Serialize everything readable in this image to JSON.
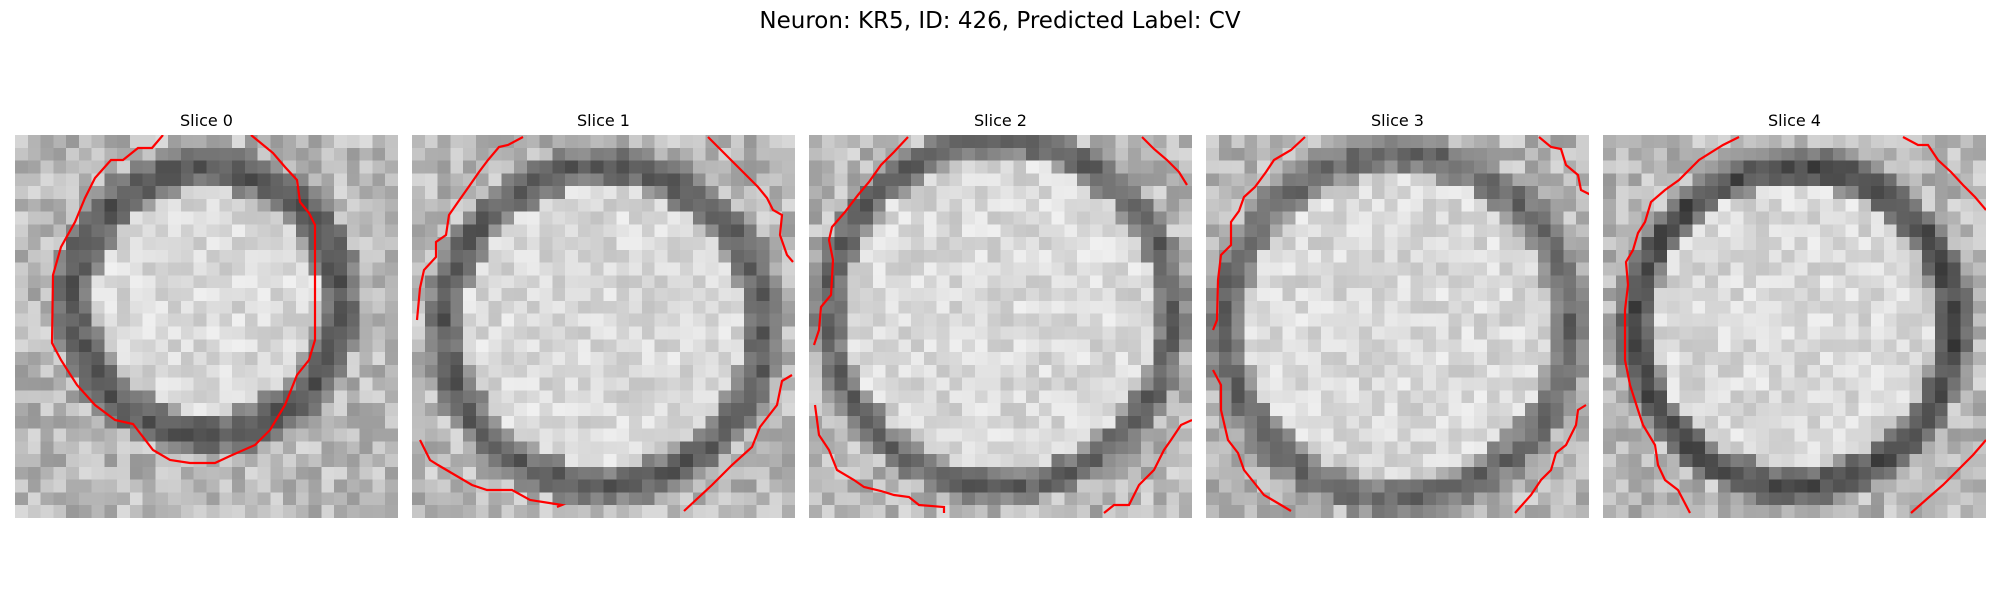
{
  "figure": {
    "title": "Neuron: KR5, ID: 426, Predicted Label: CV"
  },
  "panels": [
    {
      "title": "Slice 0"
    },
    {
      "title": "Slice 1"
    },
    {
      "title": "Slice 2"
    },
    {
      "title": "Slice 3"
    },
    {
      "title": "Slice 4"
    }
  ],
  "colors": {
    "contour": "#ff0000",
    "image_map": "grayscale"
  }
}
